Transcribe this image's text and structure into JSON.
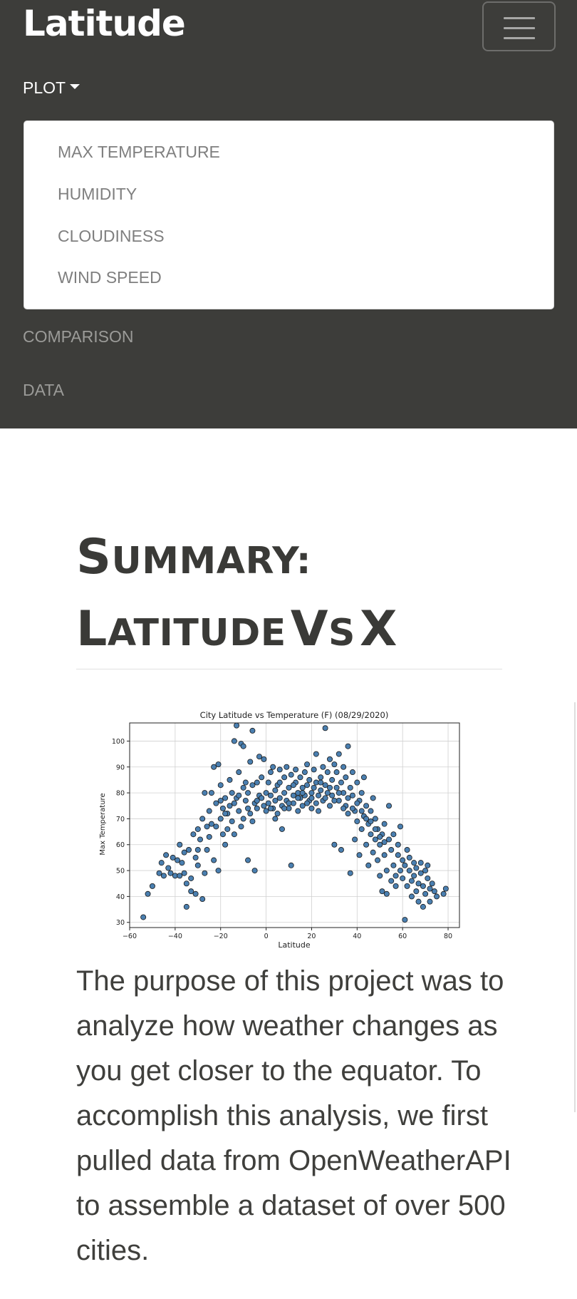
{
  "navbar": {
    "brand": "Latitude",
    "plot_label": "PLOT",
    "dropdown_items": [
      "MAX TEMPERATURE",
      "HUMIDITY",
      "CLOUDINESS",
      "WIND SPEED"
    ],
    "links": [
      "COMPARISON",
      "DATA"
    ],
    "toggler_icon": "hamburger-icon"
  },
  "main": {
    "title_line1": "Summary:",
    "title_line2": "Latitude vs X",
    "paragraph": "The purpose of this project was to analyze how weather changes as you get closer to the equator. To accomplish this analysis, we first pulled data from OpenWeatherAPI to assemble a dataset of over 500 cities."
  },
  "colors": {
    "navbar_bg": "#3d3d3a",
    "marker_fill": "#4a7fb0",
    "marker_edge": "#1a1a1a"
  },
  "chart_data": {
    "type": "scatter",
    "title": "City Latitude vs Temperature (F) (08/29/2020)",
    "xlabel": "Latitude",
    "ylabel": "Max Temperature",
    "xlim": [
      -60,
      85
    ],
    "ylim": [
      28,
      107
    ],
    "xticks": [
      -60,
      -40,
      -20,
      0,
      20,
      40,
      60,
      80
    ],
    "yticks": [
      30,
      40,
      50,
      60,
      70,
      80,
      90,
      100
    ],
    "xtick_labels": [
      "−60",
      "−40",
      "−20",
      "0",
      "20",
      "40",
      "60",
      "80"
    ],
    "ytick_labels": [
      "30",
      "40",
      "50",
      "60",
      "70",
      "80",
      "90",
      "100"
    ],
    "grid": true,
    "points": [
      [
        -54,
        32
      ],
      [
        -52,
        41
      ],
      [
        -50,
        44
      ],
      [
        -47,
        49
      ],
      [
        -46,
        53
      ],
      [
        -45,
        48
      ],
      [
        -44,
        56
      ],
      [
        -43,
        51
      ],
      [
        -42,
        49
      ],
      [
        -41,
        55
      ],
      [
        -40,
        48
      ],
      [
        -39,
        54
      ],
      [
        -38,
        60
      ],
      [
        -37,
        53
      ],
      [
        -36,
        49
      ],
      [
        -35,
        45
      ],
      [
        -35,
        36
      ],
      [
        -34,
        58
      ],
      [
        -33,
        47
      ],
      [
        -33,
        42
      ],
      [
        -32,
        64
      ],
      [
        -31,
        55
      ],
      [
        -31,
        41
      ],
      [
        -30,
        52
      ],
      [
        -30,
        66
      ],
      [
        -29,
        62
      ],
      [
        -28,
        39
      ],
      [
        -28,
        70
      ],
      [
        -27,
        49
      ],
      [
        -27,
        80
      ],
      [
        -26,
        58
      ],
      [
        -25,
        63
      ],
      [
        -25,
        73
      ],
      [
        -24,
        80
      ],
      [
        -23,
        90
      ],
      [
        -23,
        54
      ],
      [
        -22,
        67
      ],
      [
        -22,
        76
      ],
      [
        -21,
        50
      ],
      [
        -21,
        91
      ],
      [
        -20,
        70
      ],
      [
        -20,
        83
      ],
      [
        -19,
        64
      ],
      [
        -19,
        74
      ],
      [
        -18,
        60
      ],
      [
        -18,
        78
      ],
      [
        -17,
        72
      ],
      [
        -17,
        66
      ],
      [
        -16,
        85
      ],
      [
        -16,
        75
      ],
      [
        -15,
        69
      ],
      [
        -15,
        80
      ],
      [
        -14,
        64
      ],
      [
        -14,
        100
      ],
      [
        -13,
        106
      ],
      [
        -13,
        78
      ],
      [
        -12,
        73
      ],
      [
        -12,
        88
      ],
      [
        -11,
        67
      ],
      [
        -11,
        99
      ],
      [
        -10,
        70
      ],
      [
        -10,
        98
      ],
      [
        -9,
        77
      ],
      [
        -9,
        84
      ],
      [
        -8,
        80
      ],
      [
        -8,
        54
      ],
      [
        -7,
        72
      ],
      [
        -7,
        92
      ],
      [
        -6,
        104
      ],
      [
        -6,
        83
      ],
      [
        -5,
        76
      ],
      [
        -5,
        50
      ],
      [
        -4,
        84
      ],
      [
        -4,
        74
      ],
      [
        -3,
        79
      ],
      [
        -3,
        94
      ],
      [
        -2,
        78
      ],
      [
        -2,
        86
      ],
      [
        -1,
        75
      ],
      [
        -1,
        93
      ],
      [
        0,
        80
      ],
      [
        0,
        73
      ],
      [
        1,
        84
      ],
      [
        1,
        76
      ],
      [
        2,
        88
      ],
      [
        2,
        79
      ],
      [
        3,
        74
      ],
      [
        3,
        90
      ],
      [
        4,
        81
      ],
      [
        4,
        77
      ],
      [
        5,
        83
      ],
      [
        5,
        72
      ],
      [
        6,
        89
      ],
      [
        6,
        78
      ],
      [
        7,
        75
      ],
      [
        7,
        66
      ],
      [
        8,
        86
      ],
      [
        8,
        80
      ],
      [
        9,
        77
      ],
      [
        9,
        90
      ],
      [
        10,
        82
      ],
      [
        10,
        74
      ],
      [
        11,
        87
      ],
      [
        11,
        52
      ],
      [
        12,
        79
      ],
      [
        12,
        76
      ],
      [
        13,
        84
      ],
      [
        13,
        89
      ],
      [
        14,
        80
      ],
      [
        14,
        73
      ],
      [
        15,
        78
      ],
      [
        15,
        86
      ],
      [
        16,
        75
      ],
      [
        16,
        82
      ],
      [
        17,
        88
      ],
      [
        17,
        79
      ],
      [
        18,
        83
      ],
      [
        18,
        91
      ],
      [
        19,
        77
      ],
      [
        19,
        85
      ],
      [
        20,
        80
      ],
      [
        20,
        74
      ],
      [
        21,
        89
      ],
      [
        21,
        82
      ],
      [
        22,
        84
      ],
      [
        22,
        95
      ],
      [
        23,
        79
      ],
      [
        23,
        73
      ],
      [
        24,
        86
      ],
      [
        24,
        81
      ],
      [
        25,
        90
      ],
      [
        25,
        77
      ],
      [
        26,
        83
      ],
      [
        26,
        105
      ],
      [
        27,
        88
      ],
      [
        27,
        80
      ],
      [
        28,
        75
      ],
      [
        28,
        93
      ],
      [
        29,
        85
      ],
      [
        29,
        79
      ],
      [
        30,
        91
      ],
      [
        30,
        60
      ],
      [
        31,
        82
      ],
      [
        31,
        88
      ],
      [
        32,
        77
      ],
      [
        32,
        95
      ],
      [
        33,
        84
      ],
      [
        33,
        58
      ],
      [
        34,
        90
      ],
      [
        34,
        80
      ],
      [
        35,
        75
      ],
      [
        35,
        86
      ],
      [
        36,
        98
      ],
      [
        36,
        72
      ],
      [
        37,
        82
      ],
      [
        37,
        49
      ],
      [
        38,
        79
      ],
      [
        38,
        88
      ],
      [
        39,
        73
      ],
      [
        39,
        62
      ],
      [
        40,
        84
      ],
      [
        40,
        69
      ],
      [
        41,
        77
      ],
      [
        41,
        56
      ],
      [
        42,
        80
      ],
      [
        42,
        66
      ],
      [
        43,
        71
      ],
      [
        43,
        86
      ],
      [
        44,
        75
      ],
      [
        44,
        60
      ],
      [
        45,
        68
      ],
      [
        45,
        52
      ],
      [
        46,
        73
      ],
      [
        46,
        64
      ],
      [
        47,
        57
      ],
      [
        47,
        78
      ],
      [
        48,
        62
      ],
      [
        48,
        70
      ],
      [
        49,
        54
      ],
      [
        49,
        66
      ],
      [
        50,
        48
      ],
      [
        50,
        60
      ],
      [
        51,
        64
      ],
      [
        51,
        42
      ],
      [
        52,
        56
      ],
      [
        52,
        68
      ],
      [
        53,
        50
      ],
      [
        53,
        41
      ],
      [
        54,
        62
      ],
      [
        54,
        75
      ],
      [
        55,
        58
      ],
      [
        55,
        46
      ],
      [
        56,
        52
      ],
      [
        56,
        64
      ],
      [
        57,
        48
      ],
      [
        57,
        44
      ],
      [
        58,
        56
      ],
      [
        58,
        60
      ],
      [
        59,
        50
      ],
      [
        59,
        67
      ],
      [
        60,
        47
      ],
      [
        60,
        54
      ],
      [
        61,
        52
      ],
      [
        61,
        31
      ],
      [
        62,
        58
      ],
      [
        62,
        44
      ],
      [
        63,
        50
      ],
      [
        63,
        55
      ],
      [
        64,
        46
      ],
      [
        64,
        40
      ],
      [
        65,
        53
      ],
      [
        65,
        48
      ],
      [
        66,
        42
      ],
      [
        66,
        51
      ],
      [
        67,
        45
      ],
      [
        67,
        38
      ],
      [
        68,
        49
      ],
      [
        68,
        53
      ],
      [
        69,
        44
      ],
      [
        69,
        36
      ],
      [
        70,
        50
      ],
      [
        70,
        41
      ],
      [
        71,
        47
      ],
      [
        71,
        52
      ],
      [
        72,
        43
      ],
      [
        72,
        38
      ],
      [
        73,
        45
      ],
      [
        74,
        42
      ],
      [
        75,
        40
      ],
      [
        78,
        41
      ],
      [
        79,
        43
      ],
      [
        -8,
        74
      ],
      [
        -6,
        69
      ],
      [
        -4,
        77
      ],
      [
        2,
        74
      ],
      [
        4,
        70
      ],
      [
        6,
        84
      ],
      [
        8,
        74
      ],
      [
        10,
        76
      ],
      [
        12,
        83
      ],
      [
        14,
        78
      ],
      [
        16,
        80
      ],
      [
        18,
        76
      ],
      [
        20,
        78
      ],
      [
        22,
        76
      ],
      [
        24,
        84
      ],
      [
        26,
        78
      ],
      [
        28,
        82
      ],
      [
        30,
        77
      ],
      [
        32,
        80
      ],
      [
        34,
        74
      ],
      [
        36,
        78
      ],
      [
        38,
        74
      ],
      [
        40,
        76
      ],
      [
        42,
        73
      ],
      [
        44,
        70
      ],
      [
        46,
        69
      ],
      [
        48,
        66
      ],
      [
        50,
        63
      ],
      [
        52,
        61
      ],
      [
        -20,
        77
      ],
      [
        -18,
        72
      ],
      [
        -14,
        76
      ],
      [
        -12,
        79
      ],
      [
        -10,
        82
      ],
      [
        -24,
        68
      ],
      [
        -26,
        67
      ],
      [
        -30,
        58
      ],
      [
        -36,
        57
      ],
      [
        -38,
        48
      ]
    ]
  }
}
